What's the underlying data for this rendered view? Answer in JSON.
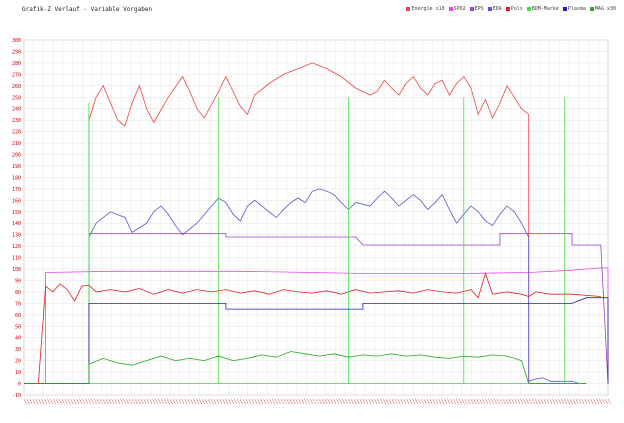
{
  "chart_data": {
    "type": "line",
    "title": "Grafik-Z Verlauf - Variable Vorgaben",
    "ylim": [
      -10,
      300
    ],
    "y_ticks": [
      -10,
      0,
      10,
      20,
      30,
      40,
      50,
      60,
      70,
      80,
      90,
      100,
      110,
      120,
      130,
      140,
      150,
      160,
      170,
      180,
      190,
      200,
      210,
      220,
      230,
      240,
      250,
      260,
      270,
      280,
      290,
      300
    ],
    "grid": true,
    "legend_position": "top-right",
    "x_axis_note": "dense unreadable red tick labels",
    "series": [
      {
        "name": "Energie x10",
        "color": "#ee4444",
        "points": [
          [
            0,
            0
          ],
          [
            9,
            0
          ],
          [
            9,
            230
          ],
          [
            10,
            250
          ],
          [
            11,
            260
          ],
          [
            12,
            245
          ],
          [
            13,
            230
          ],
          [
            14,
            225
          ],
          [
            15,
            245
          ],
          [
            16,
            260
          ],
          [
            17,
            240
          ],
          [
            18,
            228
          ],
          [
            20,
            250
          ],
          [
            22,
            268
          ],
          [
            23,
            255
          ],
          [
            24,
            240
          ],
          [
            25,
            232
          ],
          [
            27,
            255
          ],
          [
            28,
            268
          ],
          [
            29,
            255
          ],
          [
            30,
            242
          ],
          [
            31,
            235
          ],
          [
            32,
            252
          ],
          [
            34,
            262
          ],
          [
            36,
            270
          ],
          [
            38,
            275
          ],
          [
            40,
            280
          ],
          [
            42,
            275
          ],
          [
            44,
            268
          ],
          [
            46,
            258
          ],
          [
            48,
            252
          ],
          [
            49,
            255
          ],
          [
            50,
            265
          ],
          [
            51,
            258
          ],
          [
            52,
            252
          ],
          [
            53,
            262
          ],
          [
            54,
            268
          ],
          [
            55,
            258
          ],
          [
            56,
            252
          ],
          [
            57,
            262
          ],
          [
            58,
            265
          ],
          [
            59,
            252
          ],
          [
            60,
            262
          ],
          [
            61,
            268
          ],
          [
            62,
            258
          ],
          [
            63,
            235
          ],
          [
            64,
            248
          ],
          [
            65,
            232
          ],
          [
            66,
            245
          ],
          [
            67,
            260
          ],
          [
            68,
            250
          ],
          [
            69,
            240
          ],
          [
            70,
            235
          ],
          [
            70,
            0
          ],
          [
            78,
            0
          ]
        ]
      },
      {
        "name": "SPO2",
        "color": "#ee44ee",
        "points": [
          [
            0,
            0
          ],
          [
            3,
            0
          ],
          [
            3,
            97
          ],
          [
            12,
            98
          ],
          [
            30,
            98
          ],
          [
            40,
            97
          ],
          [
            48,
            96
          ],
          [
            55,
            96
          ],
          [
            60,
            96
          ],
          [
            70,
            97
          ],
          [
            76,
            99
          ],
          [
            80,
            101
          ],
          [
            81,
            101
          ],
          [
            81,
            0
          ]
        ]
      },
      {
        "name": "EPS",
        "color": "#9944cc",
        "points": [
          [
            0,
            0
          ],
          [
            9,
            0
          ],
          [
            9,
            131
          ],
          [
            28,
            131
          ],
          [
            28,
            128
          ],
          [
            46,
            128
          ],
          [
            47,
            121
          ],
          [
            66,
            121
          ],
          [
            66,
            131
          ],
          [
            76,
            131
          ],
          [
            76,
            121
          ],
          [
            80,
            121
          ],
          [
            81,
            0
          ]
        ]
      },
      {
        "name": "EDA",
        "color": "#5555dd",
        "points": [
          [
            0,
            0
          ],
          [
            9,
            0
          ],
          [
            9,
            128
          ],
          [
            10,
            140
          ],
          [
            12,
            150
          ],
          [
            14,
            145
          ],
          [
            15,
            132
          ],
          [
            17,
            140
          ],
          [
            18,
            150
          ],
          [
            19,
            155
          ],
          [
            20,
            148
          ],
          [
            21,
            138
          ],
          [
            22,
            130
          ],
          [
            24,
            140
          ],
          [
            26,
            155
          ],
          [
            27,
            162
          ],
          [
            28,
            158
          ],
          [
            29,
            148
          ],
          [
            30,
            142
          ],
          [
            31,
            155
          ],
          [
            32,
            160
          ],
          [
            34,
            150
          ],
          [
            35,
            145
          ],
          [
            36,
            152
          ],
          [
            37,
            158
          ],
          [
            38,
            162
          ],
          [
            39,
            158
          ],
          [
            40,
            168
          ],
          [
            41,
            170
          ],
          [
            42,
            168
          ],
          [
            43,
            165
          ],
          [
            44,
            158
          ],
          [
            45,
            152
          ],
          [
            46,
            158
          ],
          [
            48,
            155
          ],
          [
            49,
            162
          ],
          [
            50,
            168
          ],
          [
            51,
            162
          ],
          [
            52,
            155
          ],
          [
            53,
            160
          ],
          [
            54,
            165
          ],
          [
            55,
            160
          ],
          [
            56,
            152
          ],
          [
            57,
            158
          ],
          [
            58,
            165
          ],
          [
            59,
            152
          ],
          [
            60,
            140
          ],
          [
            61,
            148
          ],
          [
            62,
            155
          ],
          [
            63,
            150
          ],
          [
            64,
            142
          ],
          [
            65,
            138
          ],
          [
            66,
            148
          ],
          [
            67,
            155
          ],
          [
            68,
            150
          ],
          [
            69,
            140
          ],
          [
            70,
            128
          ],
          [
            70,
            2
          ],
          [
            71,
            4
          ],
          [
            72,
            5
          ],
          [
            73,
            2
          ],
          [
            76,
            2
          ],
          [
            77,
            0
          ]
        ]
      },
      {
        "name": "Puls",
        "color": "#dd2222",
        "points": [
          [
            0,
            0
          ],
          [
            2,
            0
          ],
          [
            3,
            85
          ],
          [
            4,
            80
          ],
          [
            5,
            87
          ],
          [
            6,
            82
          ],
          [
            7,
            72
          ],
          [
            8,
            85
          ],
          [
            9,
            86
          ],
          [
            10,
            80
          ],
          [
            12,
            82
          ],
          [
            14,
            80
          ],
          [
            16,
            83
          ],
          [
            18,
            78
          ],
          [
            20,
            82
          ],
          [
            22,
            79
          ],
          [
            24,
            82
          ],
          [
            26,
            80
          ],
          [
            28,
            82
          ],
          [
            30,
            79
          ],
          [
            32,
            81
          ],
          [
            34,
            78
          ],
          [
            36,
            82
          ],
          [
            38,
            80
          ],
          [
            40,
            79
          ],
          [
            42,
            81
          ],
          [
            44,
            78
          ],
          [
            46,
            82
          ],
          [
            48,
            79
          ],
          [
            50,
            80
          ],
          [
            52,
            81
          ],
          [
            54,
            79
          ],
          [
            56,
            82
          ],
          [
            58,
            80
          ],
          [
            60,
            79
          ],
          [
            62,
            82
          ],
          [
            63,
            75
          ],
          [
            64,
            96
          ],
          [
            65,
            78
          ],
          [
            67,
            80
          ],
          [
            69,
            78
          ],
          [
            70,
            76
          ],
          [
            71,
            80
          ],
          [
            73,
            78
          ],
          [
            76,
            78
          ],
          [
            80,
            76
          ]
        ]
      },
      {
        "name": "BDM-Marke",
        "color": "#44dd44",
        "points": [
          [
            0,
            0
          ],
          [
            9,
            0
          ],
          [
            9,
            245
          ],
          [
            9,
            0
          ],
          [
            27,
            0
          ],
          [
            27,
            250
          ],
          [
            27,
            0
          ],
          [
            45,
            0
          ],
          [
            45,
            250
          ],
          [
            45,
            0
          ],
          [
            61,
            0
          ],
          [
            61,
            250
          ],
          [
            61,
            0
          ],
          [
            75,
            0
          ],
          [
            75,
            250
          ],
          [
            75,
            0
          ],
          [
            78,
            0
          ]
        ]
      },
      {
        "name": "Plasma",
        "color": "#2222aa",
        "points": [
          [
            0,
            0
          ],
          [
            9,
            0
          ],
          [
            9,
            70
          ],
          [
            28,
            70
          ],
          [
            28,
            65
          ],
          [
            47,
            65
          ],
          [
            47,
            70
          ],
          [
            70,
            70
          ],
          [
            76,
            70
          ],
          [
            78,
            75
          ],
          [
            81,
            75
          ],
          [
            81,
            0
          ]
        ]
      },
      {
        "name": "MAG x30",
        "color": "#22aa22",
        "points": [
          [
            0,
            0
          ],
          [
            9,
            0
          ],
          [
            9,
            17
          ],
          [
            11,
            22
          ],
          [
            13,
            18
          ],
          [
            15,
            16
          ],
          [
            17,
            20
          ],
          [
            19,
            24
          ],
          [
            21,
            20
          ],
          [
            23,
            22
          ],
          [
            25,
            20
          ],
          [
            27,
            24
          ],
          [
            29,
            20
          ],
          [
            31,
            22
          ],
          [
            33,
            25
          ],
          [
            35,
            23
          ],
          [
            37,
            28
          ],
          [
            39,
            26
          ],
          [
            41,
            24
          ],
          [
            43,
            26
          ],
          [
            45,
            23
          ],
          [
            47,
            25
          ],
          [
            49,
            24
          ],
          [
            51,
            26
          ],
          [
            53,
            24
          ],
          [
            55,
            25
          ],
          [
            57,
            23
          ],
          [
            59,
            22
          ],
          [
            61,
            24
          ],
          [
            63,
            23
          ],
          [
            65,
            25
          ],
          [
            67,
            24
          ],
          [
            69,
            20
          ],
          [
            70,
            0
          ],
          [
            78,
            0
          ]
        ]
      }
    ]
  }
}
